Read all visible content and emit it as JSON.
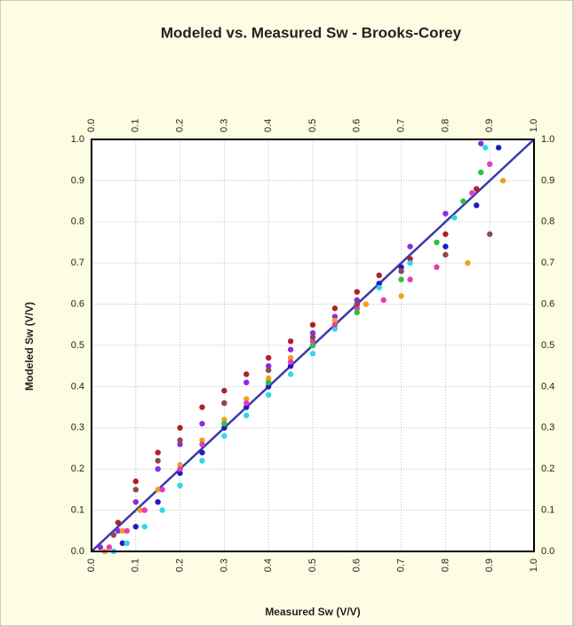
{
  "chart_data": {
    "type": "scatter",
    "title": "Modeled vs. Measured Sw - Brooks-Corey",
    "x_label": "Measured Sw (V/V)",
    "y_label": "Modeled Sw (V/V)",
    "xlim": [
      0,
      1
    ],
    "ylim": [
      0,
      1
    ],
    "xticks": [
      {
        "value": 0,
        "label": "0.0"
      },
      0.1,
      0.2,
      0.3,
      0.4,
      0.5,
      0.6,
      0.7,
      0.8,
      0.9,
      {
        "value": 1,
        "label": "1.0"
      }
    ],
    "yticks": [
      {
        "value": 0,
        "label": "0.0"
      },
      0.1,
      0.2,
      0.3,
      0.4,
      0.5,
      0.6,
      0.7,
      0.8,
      0.9,
      {
        "value": 1,
        "label": "1.0"
      }
    ],
    "grid": true,
    "reference_line": {
      "x": [
        0,
        1
      ],
      "values": [
        0,
        1
      ],
      "color": "#3a3aa8"
    },
    "series": [
      {
        "color": "#b0202a",
        "x": [
          0.06,
          0.1,
          0.15,
          0.2,
          0.25,
          0.3,
          0.35,
          0.4,
          0.45,
          0.5,
          0.55,
          0.6,
          0.65,
          0.72,
          0.8,
          0.87
        ],
        "values": [
          0.07,
          0.17,
          0.24,
          0.3,
          0.35,
          0.39,
          0.43,
          0.47,
          0.51,
          0.55,
          0.59,
          0.63,
          0.67,
          0.71,
          0.77,
          0.88
        ]
      },
      {
        "color": "#8b2be2",
        "x": [
          0.02,
          0.06,
          0.1,
          0.15,
          0.2,
          0.25,
          0.3,
          0.35,
          0.4,
          0.45,
          0.5,
          0.55,
          0.6,
          0.65,
          0.72,
          0.8,
          0.88
        ],
        "values": [
          0.01,
          0.05,
          0.12,
          0.2,
          0.26,
          0.31,
          0.36,
          0.41,
          0.45,
          0.49,
          0.53,
          0.57,
          0.61,
          0.65,
          0.74,
          0.82,
          0.99
        ]
      },
      {
        "color": "#1c1cc8",
        "x": [
          0.07,
          0.1,
          0.15,
          0.2,
          0.25,
          0.3,
          0.35,
          0.4,
          0.45,
          0.5,
          0.55,
          0.6,
          0.65,
          0.7,
          0.8,
          0.87,
          0.92
        ],
        "values": [
          0.02,
          0.06,
          0.12,
          0.19,
          0.24,
          0.3,
          0.35,
          0.4,
          0.45,
          0.5,
          0.55,
          0.6,
          0.65,
          0.69,
          0.74,
          0.84,
          0.98
        ]
      },
      {
        "color": "#30d8e8",
        "x": [
          0.05,
          0.08,
          0.12,
          0.16,
          0.2,
          0.25,
          0.3,
          0.35,
          0.4,
          0.45,
          0.5,
          0.55,
          0.6,
          0.65,
          0.72,
          0.82,
          0.89
        ],
        "values": [
          0.0,
          0.02,
          0.06,
          0.1,
          0.16,
          0.22,
          0.28,
          0.33,
          0.38,
          0.43,
          0.48,
          0.54,
          0.59,
          0.64,
          0.7,
          0.81,
          0.98
        ]
      },
      {
        "color": "#f0a020",
        "x": [
          0.03,
          0.07,
          0.11,
          0.15,
          0.2,
          0.25,
          0.3,
          0.35,
          0.4,
          0.45,
          0.5,
          0.55,
          0.62,
          0.7,
          0.85,
          0.93
        ],
        "values": [
          0.0,
          0.05,
          0.1,
          0.15,
          0.21,
          0.27,
          0.32,
          0.37,
          0.42,
          0.47,
          0.52,
          0.56,
          0.6,
          0.62,
          0.7,
          0.9
        ]
      },
      {
        "color": "#e83ab8",
        "x": [
          0.04,
          0.08,
          0.12,
          0.16,
          0.2,
          0.25,
          0.3,
          0.35,
          0.4,
          0.45,
          0.5,
          0.55,
          0.6,
          0.66,
          0.72,
          0.78,
          0.86,
          0.9
        ],
        "values": [
          0.01,
          0.05,
          0.1,
          0.15,
          0.2,
          0.26,
          0.31,
          0.36,
          0.41,
          0.46,
          0.51,
          0.55,
          0.59,
          0.61,
          0.66,
          0.69,
          0.87,
          0.94
        ]
      },
      {
        "color": "#30c040",
        "x": [
          0.3,
          0.4,
          0.5,
          0.6,
          0.7,
          0.78,
          0.84,
          0.88
        ],
        "values": [
          0.31,
          0.41,
          0.5,
          0.58,
          0.66,
          0.75,
          0.85,
          0.92
        ]
      },
      {
        "color": "#8b4a50",
        "x": [
          0.05,
          0.1,
          0.15,
          0.2,
          0.3,
          0.4,
          0.5,
          0.6,
          0.7,
          0.8,
          0.9
        ],
        "values": [
          0.04,
          0.15,
          0.22,
          0.27,
          0.36,
          0.44,
          0.52,
          0.6,
          0.68,
          0.72,
          0.77
        ]
      }
    ]
  }
}
